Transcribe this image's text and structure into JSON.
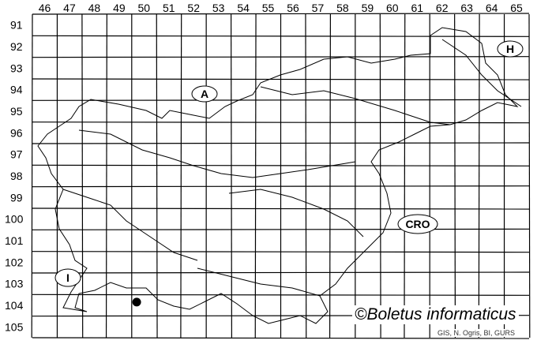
{
  "grid": {
    "columns": [
      "46",
      "47",
      "48",
      "49",
      "50",
      "51",
      "52",
      "53",
      "54",
      "55",
      "56",
      "57",
      "58",
      "59",
      "60",
      "61",
      "62",
      "63",
      "64",
      "65"
    ],
    "rows": [
      "91",
      "92",
      "93",
      "94",
      "95",
      "96",
      "97",
      "98",
      "99",
      "100",
      "101",
      "102",
      "103",
      "104",
      "105"
    ]
  },
  "country_labels": [
    {
      "text": "A",
      "name": "austria-label"
    },
    {
      "text": "H",
      "name": "hungary-label"
    },
    {
      "text": "CRO",
      "name": "croatia-label"
    },
    {
      "text": "I",
      "name": "italy-label"
    }
  ],
  "records": [
    {
      "column": "50",
      "row": "104"
    }
  ],
  "credit": "©Boletus informaticus",
  "source": "GIS, N. Ogris, BI, GURS",
  "colors": {
    "grid": "#000000",
    "outline": "#000000",
    "record": "#000000"
  }
}
